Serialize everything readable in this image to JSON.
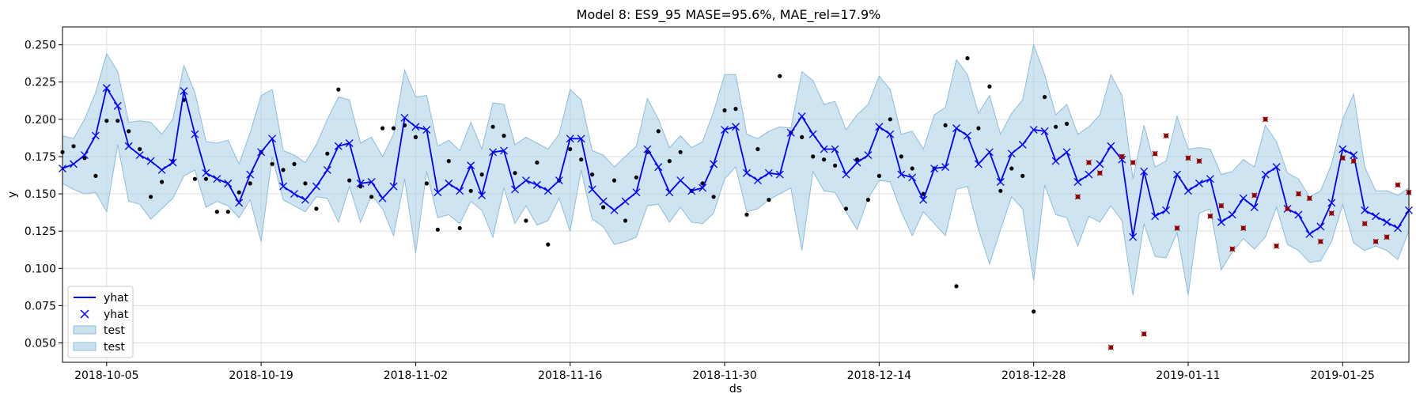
{
  "chart_data": {
    "type": "line",
    "title": "Model 8: ES9_95 MASE=95.6%, MAE_rel=17.9%",
    "xlabel": "ds",
    "ylabel": "y",
    "x_start": "2018-10-01",
    "x_end": "2019-01-31",
    "ylim": [
      0.037,
      0.262
    ],
    "grid": true,
    "x_ticks": [
      "2018-10-05",
      "2018-10-19",
      "2018-11-02",
      "2018-11-16",
      "2018-11-30",
      "2018-12-14",
      "2018-12-28",
      "2019-01-11",
      "2019-01-25"
    ],
    "y_ticks": [
      "0.050",
      "0.075",
      "0.100",
      "0.125",
      "0.150",
      "0.175",
      "0.200",
      "0.225",
      "0.250"
    ],
    "legend": {
      "position": "lower-left",
      "entries": [
        {
          "label": "yhat",
          "kind": "line"
        },
        {
          "label": "yhat",
          "kind": "marker"
        },
        {
          "label": "test",
          "kind": "band"
        },
        {
          "label": "test",
          "kind": "band"
        }
      ]
    },
    "colors": {
      "yhat": "#0000ff",
      "band_fill": "#a6cee3",
      "band_edge": "#8fbcd8",
      "train_points": "#000000",
      "test_points": "#cc0000"
    },
    "series": [
      {
        "name": "yhat",
        "values": [
          0.167,
          0.17,
          0.176,
          0.189,
          0.221,
          0.209,
          0.182,
          0.176,
          0.172,
          0.166,
          0.171,
          0.219,
          0.19,
          0.164,
          0.16,
          0.157,
          0.144,
          0.163,
          0.178,
          0.187,
          0.155,
          0.15,
          0.146,
          0.155,
          0.166,
          0.182,
          0.184,
          0.157,
          0.158,
          0.147,
          0.155,
          0.201,
          0.195,
          0.193,
          0.151,
          0.157,
          0.152,
          0.169,
          0.149,
          0.178,
          0.179,
          0.153,
          0.159,
          0.156,
          0.152,
          0.159,
          0.187,
          0.187,
          0.153,
          0.145,
          0.139,
          0.145,
          0.151,
          0.18,
          0.168,
          0.151,
          0.159,
          0.152,
          0.154,
          0.17,
          0.193,
          0.195,
          0.164,
          0.159,
          0.164,
          0.163,
          0.191,
          0.202,
          0.19,
          0.18,
          0.18,
          0.163,
          0.171,
          0.176,
          0.195,
          0.19,
          0.163,
          0.161,
          0.146,
          0.167,
          0.168,
          0.194,
          0.189,
          0.17,
          0.178,
          0.158,
          0.177,
          0.183,
          0.193,
          0.192,
          0.172,
          0.178,
          0.158,
          0.163,
          0.17,
          0.182,
          0.173,
          0.121,
          0.165,
          0.135,
          0.139,
          0.163,
          0.152,
          0.157,
          0.16,
          0.131,
          0.136,
          0.147,
          0.141,
          0.163,
          0.168,
          0.14,
          0.136,
          0.123,
          0.128,
          0.144,
          0.18,
          0.176,
          0.139,
          0.135,
          0.131,
          0.127,
          0.139
        ]
      },
      {
        "name": "test",
        "upper": [
          0.189,
          0.187,
          0.2,
          0.218,
          0.244,
          0.232,
          0.198,
          0.199,
          0.198,
          0.19,
          0.2,
          0.236,
          0.218,
          0.185,
          0.184,
          0.186,
          0.17,
          0.191,
          0.216,
          0.22,
          0.179,
          0.176,
          0.171,
          0.183,
          0.2,
          0.215,
          0.213,
          0.184,
          0.188,
          0.175,
          0.19,
          0.233,
          0.215,
          0.216,
          0.182,
          0.186,
          0.179,
          0.198,
          0.18,
          0.211,
          0.21,
          0.183,
          0.188,
          0.184,
          0.18,
          0.19,
          0.22,
          0.213,
          0.179,
          0.176,
          0.168,
          0.175,
          0.182,
          0.214,
          0.2,
          0.181,
          0.189,
          0.181,
          0.185,
          0.205,
          0.23,
          0.23,
          0.19,
          0.187,
          0.192,
          0.195,
          0.194,
          0.232,
          0.226,
          0.21,
          0.212,
          0.193,
          0.203,
          0.21,
          0.229,
          0.22,
          0.19,
          0.192,
          0.18,
          0.203,
          0.208,
          0.24,
          0.23,
          0.204,
          0.216,
          0.19,
          0.204,
          0.213,
          0.25,
          0.23,
          0.203,
          0.21,
          0.19,
          0.195,
          0.203,
          0.23,
          0.216,
          0.16,
          0.196,
          0.168,
          0.172,
          0.202,
          0.18,
          0.181,
          0.18,
          0.163,
          0.165,
          0.173,
          0.168,
          0.196,
          0.185,
          0.164,
          0.16,
          0.148,
          0.152,
          0.17,
          0.2,
          0.217,
          0.168,
          0.152,
          0.152,
          0.149,
          0.154
        ],
        "lower": [
          0.157,
          0.153,
          0.15,
          0.151,
          0.138,
          0.183,
          0.145,
          0.143,
          0.133,
          0.14,
          0.147,
          0.162,
          0.166,
          0.141,
          0.145,
          0.142,
          0.134,
          0.146,
          0.118,
          0.175,
          0.146,
          0.142,
          0.138,
          0.148,
          0.147,
          0.131,
          0.155,
          0.131,
          0.149,
          0.14,
          0.122,
          0.16,
          0.11,
          0.165,
          0.134,
          0.136,
          0.13,
          0.145,
          0.139,
          0.121,
          0.154,
          0.13,
          0.142,
          0.129,
          0.132,
          0.147,
          0.125,
          0.166,
          0.133,
          0.128,
          0.116,
          0.118,
          0.121,
          0.142,
          0.143,
          0.131,
          0.141,
          0.131,
          0.13,
          0.137,
          0.16,
          0.168,
          0.138,
          0.14,
          0.146,
          0.15,
          0.154,
          0.112,
          0.165,
          0.152,
          0.151,
          0.138,
          0.126,
          0.147,
          0.159,
          0.158,
          0.138,
          0.122,
          0.138,
          0.13,
          0.122,
          0.153,
          0.155,
          0.126,
          0.103,
          0.126,
          0.148,
          0.14,
          0.092,
          0.156,
          0.136,
          0.134,
          0.115,
          0.135,
          0.131,
          0.142,
          0.132,
          0.082,
          0.13,
          0.108,
          0.107,
          0.124,
          0.082,
          0.137,
          0.14,
          0.099,
          0.111,
          0.12,
          0.113,
          0.121,
          0.141,
          0.116,
          0.112,
          0.104,
          0.105,
          0.118,
          0.143,
          0.117,
          0.112,
          0.115,
          0.112,
          0.106,
          0.125
        ]
      }
    ],
    "train_points": [
      [
        0,
        0.178
      ],
      [
        1,
        0.182
      ],
      [
        2,
        0.174
      ],
      [
        3,
        0.162
      ],
      [
        4,
        0.199
      ],
      [
        5,
        0.199
      ],
      [
        6,
        0.192
      ],
      [
        7,
        0.18
      ],
      [
        8,
        0.148
      ],
      [
        9,
        0.158
      ],
      [
        10,
        0.172
      ],
      [
        11,
        0.213
      ],
      [
        12,
        0.16
      ],
      [
        13,
        0.16
      ],
      [
        14,
        0.138
      ],
      [
        15,
        0.138
      ],
      [
        16,
        0.151
      ],
      [
        17,
        0.157
      ],
      [
        18,
        0.178
      ],
      [
        19,
        0.17
      ],
      [
        20,
        0.166
      ],
      [
        21,
        0.17
      ],
      [
        22,
        0.157
      ],
      [
        23,
        0.14
      ],
      [
        24,
        0.177
      ],
      [
        25,
        0.22
      ],
      [
        26,
        0.159
      ],
      [
        27,
        0.155
      ],
      [
        28,
        0.148
      ],
      [
        29,
        0.194
      ],
      [
        30,
        0.194
      ],
      [
        31,
        0.196
      ],
      [
        32,
        0.188
      ],
      [
        33,
        0.157
      ],
      [
        34,
        0.126
      ],
      [
        35,
        0.172
      ],
      [
        36,
        0.127
      ],
      [
        37,
        0.152
      ],
      [
        38,
        0.163
      ],
      [
        39,
        0.195
      ],
      [
        40,
        0.189
      ],
      [
        41,
        0.164
      ],
      [
        42,
        0.132
      ],
      [
        43,
        0.171
      ],
      [
        44,
        0.116
      ],
      [
        45,
        0.159
      ],
      [
        46,
        0.18
      ],
      [
        47,
        0.173
      ],
      [
        48,
        0.163
      ],
      [
        49,
        0.141
      ],
      [
        50,
        0.159
      ],
      [
        51,
        0.132
      ],
      [
        52,
        0.161
      ],
      [
        53,
        0.178
      ],
      [
        54,
        0.192
      ],
      [
        55,
        0.172
      ],
      [
        56,
        0.178
      ],
      [
        57,
        0.152
      ],
      [
        58,
        0.157
      ],
      [
        59,
        0.148
      ],
      [
        60,
        0.206
      ],
      [
        61,
        0.207
      ],
      [
        62,
        0.136
      ],
      [
        63,
        0.18
      ],
      [
        64,
        0.146
      ],
      [
        65,
        0.229
      ],
      [
        66,
        0.191
      ],
      [
        67,
        0.188
      ],
      [
        68,
        0.175
      ],
      [
        69,
        0.173
      ],
      [
        70,
        0.169
      ],
      [
        71,
        0.14
      ],
      [
        72,
        0.173
      ],
      [
        73,
        0.146
      ],
      [
        74,
        0.162
      ],
      [
        75,
        0.2
      ],
      [
        76,
        0.175
      ],
      [
        77,
        0.167
      ],
      [
        78,
        0.15
      ],
      [
        79,
        0.167
      ],
      [
        80,
        0.196
      ],
      [
        81,
        0.088
      ],
      [
        82,
        0.241
      ],
      [
        83,
        0.194
      ],
      [
        84,
        0.222
      ],
      [
        85,
        0.152
      ],
      [
        86,
        0.167
      ],
      [
        87,
        0.162
      ],
      [
        88,
        0.071
      ],
      [
        89,
        0.215
      ],
      [
        90,
        0.195
      ],
      [
        91,
        0.197
      ]
    ],
    "test_points": [
      [
        92,
        0.148
      ],
      [
        93,
        0.171
      ],
      [
        94,
        0.164
      ],
      [
        95,
        0.047
      ],
      [
        96,
        0.175
      ],
      [
        97,
        0.171
      ],
      [
        98,
        0.056
      ],
      [
        99,
        0.177
      ],
      [
        100,
        0.189
      ],
      [
        101,
        0.127
      ],
      [
        102,
        0.174
      ],
      [
        103,
        0.172
      ],
      [
        104,
        0.135
      ],
      [
        105,
        0.142
      ],
      [
        106,
        0.113
      ],
      [
        107,
        0.127
      ],
      [
        108,
        0.149
      ],
      [
        109,
        0.2
      ],
      [
        110,
        0.115
      ],
      [
        111,
        0.14
      ],
      [
        112,
        0.15
      ],
      [
        113,
        0.147
      ],
      [
        114,
        0.118
      ],
      [
        115,
        0.137
      ],
      [
        116,
        0.174
      ],
      [
        117,
        0.172
      ],
      [
        118,
        0.13
      ],
      [
        119,
        0.118
      ],
      [
        120,
        0.121
      ],
      [
        121,
        0.156
      ],
      [
        122,
        0.151
      ]
    ]
  }
}
